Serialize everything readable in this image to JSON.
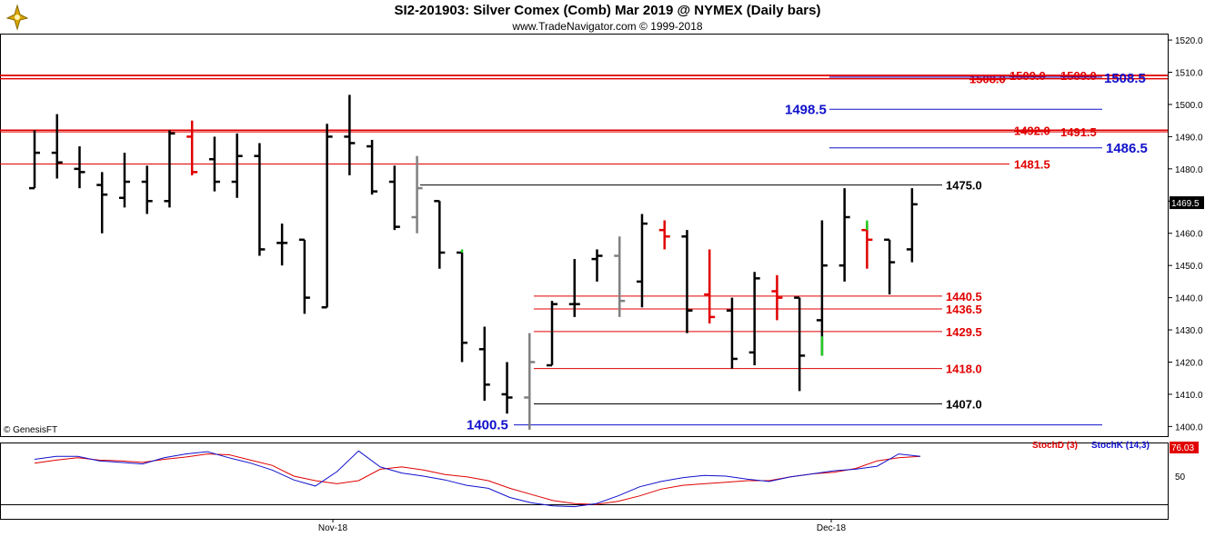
{
  "header": {
    "title": "SI2-201903:  Silver Comex (Comb) Mar 2019 @ NYMEX  (Daily bars)",
    "subtitle": "www.TradeNavigator.com © 1999-2018"
  },
  "footer": {
    "copyright": "© GenesisFT"
  },
  "colors": {
    "bar_black": "#000000",
    "bar_red": "#e00000",
    "bar_green": "#22cc22",
    "bar_gray": "#808080",
    "level_red": "#e00000",
    "level_blue": "#1010cc",
    "level_black": "#000000",
    "stoch_d": "#e00000",
    "stoch_k": "#1010cc"
  },
  "chart_data": [
    {
      "type": "ohlc",
      "title": "SI2-201903:  Silver Comex (Comb) Mar 2019 @ NYMEX  (Daily bars)",
      "x_labels": [
        "Nov-18",
        "Dec-18"
      ],
      "ylim": [
        1397,
        1522
      ],
      "y_ticks": [
        1400.0,
        1410.0,
        1420.0,
        1430.0,
        1440.0,
        1450.0,
        1460.0,
        1470.0,
        1480.0,
        1490.0,
        1500.0,
        1510.0,
        1520.0
      ],
      "last_price": "1469.5",
      "bars": [
        {
          "o": 1474,
          "h": 1492,
          "l": 1474,
          "c": 1485,
          "color": "black"
        },
        {
          "o": 1485,
          "h": 1497,
          "l": 1477,
          "c": 1482,
          "color": "black"
        },
        {
          "o": 1480,
          "h": 1487,
          "l": 1474,
          "c": 1479,
          "color": "black"
        },
        {
          "o": 1475,
          "h": 1479,
          "l": 1460,
          "c": 1472,
          "color": "black"
        },
        {
          "o": 1471,
          "h": 1485,
          "l": 1468,
          "c": 1476,
          "color": "black"
        },
        {
          "o": 1476,
          "h": 1481,
          "l": 1466,
          "c": 1470,
          "color": "black"
        },
        {
          "o": 1470,
          "h": 1492,
          "l": 1468,
          "c": 1491,
          "color": "black"
        },
        {
          "o": 1490,
          "h": 1495,
          "l": 1478,
          "c": 1479,
          "color": "red"
        },
        {
          "o": 1483,
          "h": 1490,
          "l": 1473,
          "c": 1476,
          "color": "black"
        },
        {
          "o": 1476,
          "h": 1491,
          "l": 1471,
          "c": 1484,
          "color": "black"
        },
        {
          "o": 1484,
          "h": 1488,
          "l": 1453,
          "c": 1455,
          "color": "black"
        },
        {
          "o": 1457,
          "h": 1463,
          "l": 1450,
          "c": 1457,
          "color": "black"
        },
        {
          "o": 1458,
          "h": 1458,
          "l": 1435,
          "c": 1440,
          "color": "black"
        },
        {
          "o": 1437,
          "h": 1494,
          "l": 1437,
          "c": 1490,
          "color": "black"
        },
        {
          "o": 1490,
          "h": 1503,
          "l": 1478,
          "c": 1488,
          "color": "black"
        },
        {
          "o": 1487,
          "h": 1489,
          "l": 1472,
          "c": 1473,
          "color": "black"
        },
        {
          "o": 1476,
          "h": 1481,
          "l": 1461,
          "c": 1462,
          "color": "black"
        },
        {
          "o": 1465,
          "h": 1484,
          "l": 1460,
          "c": 1474,
          "color": "gray"
        },
        {
          "o": 1470,
          "h": 1470,
          "l": 1449,
          "c": 1454,
          "color": "black"
        },
        {
          "o": 1454,
          "h": 1454,
          "l": 1420,
          "c": 1426,
          "color": "black"
        },
        {
          "o": 1424,
          "h": 1431,
          "l": 1408,
          "c": 1413,
          "color": "black"
        },
        {
          "o": 1410,
          "h": 1420,
          "l": 1404,
          "c": 1409,
          "color": "black"
        },
        {
          "o": 1409,
          "h": 1429,
          "l": 1399,
          "c": 1420,
          "color": "gray"
        },
        {
          "o": 1419,
          "h": 1439,
          "l": 1419,
          "c": 1438,
          "color": "black"
        },
        {
          "o": 1438,
          "h": 1452,
          "l": 1434,
          "c": 1438,
          "color": "black"
        },
        {
          "o": 1452,
          "h": 1455,
          "l": 1445,
          "c": 1453,
          "color": "black"
        },
        {
          "o": 1453,
          "h": 1459,
          "l": 1434,
          "c": 1439,
          "color": "gray"
        },
        {
          "o": 1445,
          "h": 1466,
          "l": 1437,
          "c": 1463,
          "color": "black"
        },
        {
          "o": 1461,
          "h": 1464,
          "l": 1455,
          "c": 1459,
          "color": "red"
        },
        {
          "o": 1459,
          "h": 1461,
          "l": 1429,
          "c": 1436,
          "color": "black"
        },
        {
          "o": 1441,
          "h": 1455,
          "l": 1432,
          "c": 1434,
          "color": "red"
        },
        {
          "o": 1436,
          "h": 1440,
          "l": 1418,
          "c": 1421,
          "color": "black"
        },
        {
          "o": 1423,
          "h": 1448,
          "l": 1419,
          "c": 1446,
          "color": "black"
        },
        {
          "o": 1442,
          "h": 1447,
          "l": 1433,
          "c": 1440,
          "color": "red"
        },
        {
          "o": 1440,
          "h": 1440,
          "l": 1411,
          "c": 1422,
          "color": "black"
        },
        {
          "o": 1433,
          "h": 1464,
          "l": 1422,
          "c": 1450,
          "color": "black"
        },
        {
          "o": 1450,
          "h": 1474,
          "l": 1445,
          "c": 1465,
          "color": "black"
        },
        {
          "o": 1461,
          "h": 1463,
          "l": 1449,
          "c": 1458,
          "color": "red"
        },
        {
          "o": 1458,
          "h": 1458,
          "l": 1441,
          "c": 1451,
          "color": "black"
        },
        {
          "o": 1455,
          "h": 1474,
          "l": 1451,
          "c": 1469,
          "color": "black"
        }
      ],
      "green_marks": [
        {
          "bar": 19,
          "h": 1455,
          "l": 1454
        },
        {
          "bar": 35,
          "h": 1428,
          "l": 1422
        },
        {
          "bar": 37,
          "h": 1464,
          "l": 1461
        }
      ],
      "levels": [
        {
          "value": 1509.0,
          "label": "1509.0",
          "color": "red",
          "strike": true
        },
        {
          "value": 1509.0,
          "label": "1509.0",
          "color": "red",
          "strike": true
        },
        {
          "value": 1508.0,
          "label": "1508.0",
          "color": "red",
          "strike": true
        },
        {
          "value": 1508.5,
          "label": "1508.5",
          "color": "blue",
          "strike": false
        },
        {
          "value": 1498.5,
          "label": "1498.5",
          "color": "blue",
          "strike": false
        },
        {
          "value": 1492.0,
          "label": "1492.0",
          "color": "red",
          "strike": true
        },
        {
          "value": 1491.5,
          "label": "1491.5",
          "color": "red",
          "strike": false
        },
        {
          "value": 1486.5,
          "label": "1486.5",
          "color": "blue",
          "strike": false
        },
        {
          "value": 1481.5,
          "label": "1481.5",
          "color": "red",
          "strike": false
        },
        {
          "value": 1475.0,
          "label": "1475.0",
          "color": "black",
          "strike": false
        },
        {
          "value": 1440.5,
          "label": "1440.5",
          "color": "red",
          "strike": false
        },
        {
          "value": 1436.5,
          "label": "1436.5",
          "color": "red",
          "strike": false
        },
        {
          "value": 1429.5,
          "label": "1429.5",
          "color": "red",
          "strike": false
        },
        {
          "value": 1418.0,
          "label": "1418.0",
          "color": "red",
          "strike": false
        },
        {
          "value": 1407.0,
          "label": "1407.0",
          "color": "black",
          "strike": false
        },
        {
          "value": 1400.5,
          "label": "1400.5",
          "color": "blue",
          "strike": false
        }
      ]
    },
    {
      "type": "line",
      "title": "",
      "ylim": [
        0,
        100
      ],
      "y_ticks": [
        50
      ],
      "last_value": "76.03",
      "legend": [
        "StochD (3)",
        "StochK (14,3)"
      ],
      "series": [
        {
          "name": "StochD (3)",
          "color": "red",
          "values": [
            67,
            71,
            74,
            71,
            70,
            68,
            72,
            75,
            79,
            78,
            71,
            64,
            50,
            44,
            40,
            44,
            59,
            62,
            58,
            52,
            49,
            44,
            34,
            26,
            18,
            14,
            13,
            17,
            24,
            33,
            38,
            40,
            42,
            44,
            44,
            49,
            53,
            55,
            60,
            70,
            74,
            76
          ]
        },
        {
          "name": "StochK (14,3)",
          "color": "blue",
          "values": [
            72,
            76,
            76,
            70,
            68,
            66,
            74,
            79,
            82,
            74,
            67,
            58,
            45,
            37,
            56,
            83,
            62,
            54,
            50,
            45,
            38,
            34,
            22,
            15,
            11,
            10,
            14,
            24,
            36,
            43,
            48,
            51,
            50,
            46,
            43,
            49,
            53,
            57,
            59,
            63,
            79,
            76
          ]
        }
      ]
    }
  ]
}
